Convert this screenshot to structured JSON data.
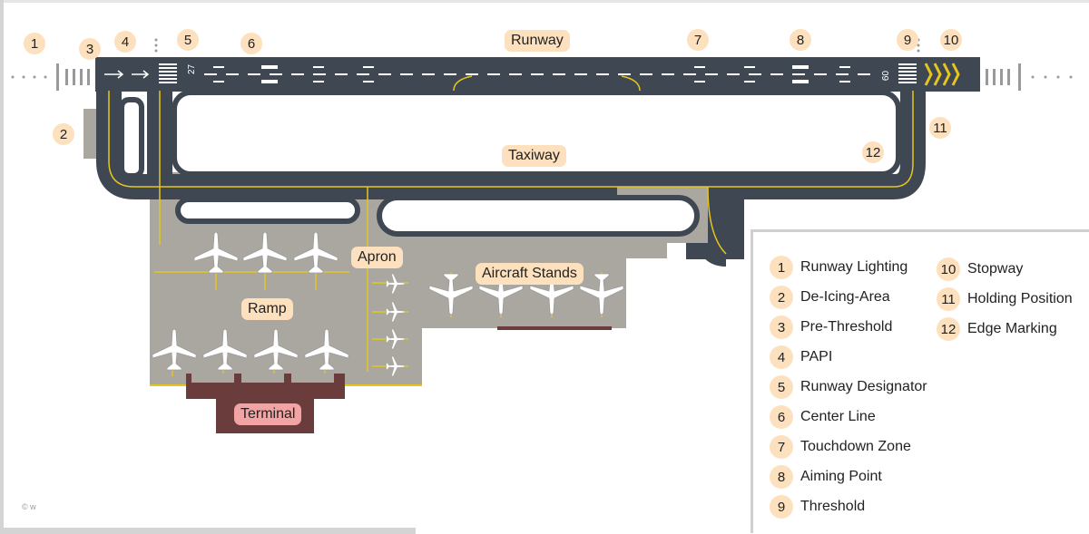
{
  "labels": {
    "runway": "Runway",
    "taxiway": "Taxiway",
    "apron": "Apron",
    "aircraft_stands": "Aircraft Stands",
    "ramp": "Ramp",
    "terminal": "Terminal"
  },
  "runway_designators": {
    "left": "27",
    "right": "09"
  },
  "markers": [
    "1",
    "2",
    "3",
    "4",
    "5",
    "6",
    "7",
    "8",
    "9",
    "10",
    "11",
    "12"
  ],
  "legend": [
    {
      "num": "1",
      "label": "Runway Lighting"
    },
    {
      "num": "2",
      "label": "De-Icing-Area"
    },
    {
      "num": "3",
      "label": "Pre-Threshold"
    },
    {
      "num": "4",
      "label": "PAPI"
    },
    {
      "num": "5",
      "label": "Runway Designator"
    },
    {
      "num": "6",
      "label": "Center Line"
    },
    {
      "num": "7",
      "label": "Touchdown Zone"
    },
    {
      "num": "8",
      "label": "Aiming Point"
    },
    {
      "num": "9",
      "label": "Threshold"
    },
    {
      "num": "10",
      "label": "Stopway"
    },
    {
      "num": "11",
      "label": "Holding Position"
    },
    {
      "num": "12",
      "label": "Edge Marking"
    }
  ],
  "copyright": "© w",
  "colors": {
    "runway": "#3f4752",
    "apron": "#a9a79f",
    "taxi_line": "#e6c51e",
    "terminal": "#6b3c3c",
    "tag": "#fde0bd",
    "terminal_tag": "#f2a3a3"
  }
}
